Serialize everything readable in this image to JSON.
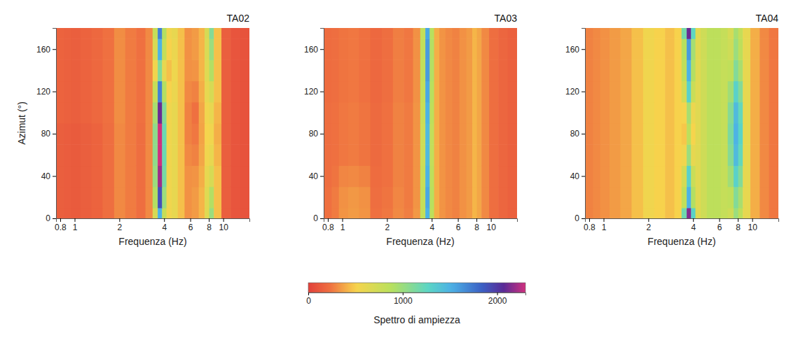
{
  "chart_data": [
    {
      "type": "heatmap",
      "title": "TA02",
      "x_label": "Frequenza (Hz)",
      "y_label": "Azimut (°)",
      "log": "x",
      "x": [
        0.8,
        0.9,
        1,
        1.2,
        1.4,
        1.7,
        2,
        2.4,
        2.8,
        3.2,
        3.5,
        3.75,
        4,
        4.3,
        4.7,
        5.2,
        5.8,
        6.5,
        7.2,
        7.8,
        8.3,
        9,
        10.5,
        12,
        14
      ],
      "y": [
        0,
        20,
        40,
        60,
        80,
        100,
        120,
        140,
        160,
        180
      ],
      "z": [
        [
          150,
          140,
          130,
          150,
          170,
          220,
          300,
          260,
          220,
          300,
          700,
          1500,
          800,
          550,
          600,
          450,
          320,
          350,
          420,
          650,
          1000,
          450,
          150,
          100,
          90
        ],
        [
          150,
          140,
          130,
          150,
          170,
          220,
          300,
          260,
          220,
          300,
          900,
          1900,
          1000,
          550,
          600,
          450,
          320,
          350,
          420,
          650,
          900,
          450,
          150,
          100,
          90
        ],
        [
          150,
          140,
          130,
          150,
          170,
          220,
          300,
          260,
          220,
          300,
          1000,
          2200,
          1150,
          550,
          600,
          450,
          320,
          330,
          400,
          600,
          700,
          450,
          150,
          100,
          90
        ],
        [
          150,
          140,
          130,
          150,
          170,
          220,
          300,
          260,
          220,
          300,
          1050,
          2300,
          1200,
          550,
          600,
          450,
          300,
          280,
          380,
          550,
          600,
          420,
          150,
          100,
          90
        ],
        [
          150,
          140,
          130,
          150,
          170,
          220,
          300,
          260,
          220,
          300,
          1050,
          2300,
          1200,
          550,
          600,
          450,
          280,
          250,
          370,
          520,
          550,
          400,
          150,
          100,
          90
        ],
        [
          170,
          160,
          150,
          170,
          190,
          230,
          310,
          260,
          230,
          300,
          950,
          2100,
          1100,
          550,
          600,
          450,
          280,
          230,
          380,
          550,
          600,
          420,
          150,
          100,
          90
        ],
        [
          170,
          160,
          150,
          170,
          190,
          230,
          310,
          260,
          230,
          300,
          800,
          1700,
          900,
          500,
          580,
          450,
          300,
          280,
          400,
          600,
          700,
          450,
          150,
          100,
          90
        ],
        [
          170,
          160,
          150,
          170,
          190,
          230,
          310,
          260,
          230,
          300,
          550,
          1100,
          600,
          450,
          560,
          450,
          320,
          330,
          420,
          650,
          900,
          450,
          150,
          100,
          90
        ],
        [
          170,
          160,
          150,
          170,
          190,
          230,
          310,
          260,
          230,
          300,
          700,
          1500,
          800,
          500,
          580,
          450,
          320,
          350,
          420,
          680,
          1000,
          450,
          150,
          100,
          90
        ],
        [
          170,
          160,
          150,
          170,
          190,
          230,
          310,
          260,
          230,
          300,
          800,
          1700,
          900,
          550,
          600,
          450,
          320,
          350,
          420,
          700,
          1100,
          450,
          150,
          100,
          90
        ]
      ],
      "xlim": [
        0.75,
        15
      ],
      "xticks": [
        0.8,
        1,
        2,
        4,
        6,
        8,
        10
      ],
      "ylim": [
        0,
        180
      ],
      "yticks": [
        0,
        40,
        80,
        120,
        160
      ]
    },
    {
      "type": "heatmap",
      "title": "TA03",
      "x_label": "Frequenza (Hz)",
      "log": "x",
      "x": [
        0.8,
        0.9,
        1,
        1.2,
        1.4,
        1.7,
        2,
        2.4,
        2.8,
        3.2,
        3.5,
        3.75,
        4,
        4.3,
        4.7,
        5.2,
        5.8,
        6.5,
        7.2,
        7.8,
        8.3,
        9,
        10.5,
        12,
        14
      ],
      "y": [
        0,
        20,
        40,
        60,
        80,
        100,
        120,
        140,
        160,
        180
      ],
      "z": [
        [
          230,
          260,
          330,
          350,
          330,
          230,
          250,
          300,
          270,
          340,
          800,
          1500,
          850,
          400,
          330,
          300,
          280,
          320,
          350,
          420,
          380,
          300,
          220,
          180,
          160
        ],
        [
          230,
          260,
          320,
          340,
          320,
          220,
          240,
          290,
          260,
          330,
          800,
          1550,
          880,
          400,
          330,
          300,
          280,
          320,
          350,
          420,
          380,
          300,
          220,
          180,
          160
        ],
        [
          220,
          240,
          290,
          300,
          280,
          210,
          230,
          280,
          260,
          330,
          780,
          1500,
          850,
          400,
          330,
          300,
          280,
          320,
          350,
          420,
          380,
          300,
          220,
          180,
          160
        ],
        [
          220,
          230,
          250,
          260,
          240,
          200,
          230,
          280,
          260,
          330,
          750,
          1450,
          820,
          400,
          330,
          300,
          280,
          320,
          350,
          420,
          380,
          300,
          220,
          180,
          160
        ],
        [
          220,
          230,
          250,
          260,
          240,
          200,
          230,
          280,
          260,
          330,
          750,
          1450,
          820,
          400,
          330,
          300,
          280,
          320,
          350,
          420,
          380,
          300,
          220,
          180,
          160
        ],
        [
          220,
          230,
          250,
          260,
          240,
          200,
          230,
          280,
          260,
          330,
          780,
          1500,
          850,
          400,
          330,
          300,
          280,
          320,
          350,
          420,
          380,
          300,
          220,
          180,
          160
        ],
        [
          210,
          220,
          240,
          250,
          230,
          190,
          220,
          270,
          250,
          320,
          800,
          1550,
          880,
          400,
          330,
          300,
          280,
          320,
          350,
          420,
          380,
          300,
          220,
          180,
          160
        ],
        [
          210,
          220,
          240,
          250,
          230,
          190,
          220,
          270,
          250,
          320,
          820,
          1600,
          900,
          400,
          330,
          300,
          280,
          320,
          350,
          420,
          380,
          300,
          220,
          180,
          160
        ],
        [
          210,
          220,
          240,
          250,
          230,
          190,
          220,
          270,
          250,
          320,
          820,
          1600,
          900,
          400,
          330,
          300,
          280,
          320,
          350,
          420,
          380,
          300,
          220,
          180,
          160
        ],
        [
          210,
          220,
          240,
          250,
          230,
          190,
          220,
          270,
          250,
          320,
          800,
          1550,
          880,
          400,
          330,
          300,
          280,
          320,
          350,
          420,
          380,
          300,
          220,
          180,
          160
        ]
      ],
      "xlim": [
        0.75,
        15
      ],
      "xticks": [
        0.8,
        1,
        2,
        4,
        6,
        8,
        10
      ],
      "ylim": [
        0,
        180
      ],
      "yticks": [
        0,
        40,
        80,
        120,
        160
      ]
    },
    {
      "type": "heatmap",
      "title": "TA04",
      "x_label": "Frequenza (Hz)",
      "log": "x",
      "x": [
        0.8,
        0.9,
        1,
        1.2,
        1.4,
        1.7,
        2,
        2.4,
        2.8,
        3.2,
        3.5,
        3.75,
        4,
        4.3,
        4.7,
        5.2,
        5.8,
        6.5,
        7.2,
        7.8,
        8.3,
        9,
        10.5,
        12,
        14
      ],
      "y": [
        0,
        20,
        40,
        60,
        80,
        100,
        120,
        140,
        160,
        180
      ],
      "z": [
        [
          280,
          300,
          320,
          350,
          380,
          450,
          550,
          500,
          450,
          500,
          1180,
          2150,
          1290,
          650,
          750,
          850,
          850,
          800,
          750,
          1000,
          850,
          600,
          400,
          300,
          250
        ],
        [
          280,
          300,
          320,
          350,
          380,
          450,
          550,
          500,
          450,
          500,
          830,
          1500,
          900,
          650,
          750,
          850,
          850,
          800,
          830,
          1100,
          940,
          600,
          400,
          300,
          250
        ],
        [
          280,
          300,
          320,
          350,
          380,
          450,
          550,
          500,
          450,
          500,
          720,
          1300,
          780,
          650,
          750,
          850,
          850,
          800,
          980,
          1300,
          1100,
          600,
          400,
          300,
          250
        ],
        [
          280,
          300,
          320,
          350,
          380,
          450,
          550,
          500,
          450,
          500,
          550,
          1000,
          600,
          650,
          750,
          850,
          850,
          800,
          1090,
          1450,
          1230,
          600,
          400,
          300,
          250
        ],
        [
          280,
          300,
          320,
          350,
          380,
          450,
          550,
          500,
          450,
          500,
          470,
          850,
          510,
          650,
          750,
          850,
          850,
          800,
          1130,
          1500,
          1280,
          600,
          400,
          300,
          250
        ],
        [
          280,
          300,
          320,
          350,
          380,
          450,
          550,
          500,
          450,
          500,
          520,
          950,
          570,
          650,
          750,
          850,
          850,
          800,
          1090,
          1450,
          1230,
          600,
          400,
          300,
          250
        ],
        [
          280,
          300,
          320,
          350,
          380,
          450,
          550,
          500,
          450,
          500,
          720,
          1300,
          780,
          650,
          750,
          850,
          850,
          800,
          980,
          1300,
          1100,
          600,
          400,
          300,
          250
        ],
        [
          280,
          300,
          320,
          350,
          380,
          450,
          550,
          500,
          450,
          500,
          830,
          1500,
          900,
          650,
          750,
          850,
          850,
          800,
          830,
          1100,
          940,
          600,
          400,
          300,
          250
        ],
        [
          280,
          300,
          320,
          350,
          380,
          450,
          550,
          500,
          450,
          500,
          880,
          1600,
          960,
          650,
          750,
          850,
          850,
          800,
          750,
          1000,
          850,
          600,
          400,
          300,
          250
        ],
        [
          280,
          300,
          320,
          350,
          380,
          450,
          550,
          500,
          450,
          500,
          1160,
          2100,
          1260,
          650,
          750,
          850,
          850,
          800,
          710,
          950,
          810,
          600,
          400,
          300,
          250
        ]
      ],
      "xlim": [
        0.75,
        15
      ],
      "xticks": [
        0.8,
        1,
        2,
        4,
        6,
        8,
        10
      ],
      "ylim": [
        0,
        180
      ],
      "yticks": [
        0,
        40,
        80,
        120,
        160
      ]
    }
  ],
  "colorbar": {
    "label": "Spettro di ampiezza",
    "lim": [
      0,
      2300
    ],
    "ticks": [
      0,
      1000,
      2000
    ]
  }
}
